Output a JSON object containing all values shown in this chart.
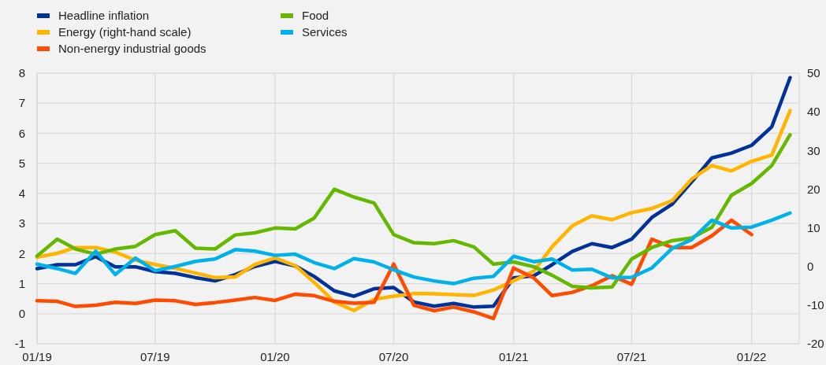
{
  "chart_data": {
    "type": "line",
    "x": [
      "2019-01",
      "2019-02",
      "2019-03",
      "2019-04",
      "2019-05",
      "2019-06",
      "2019-07",
      "2019-08",
      "2019-09",
      "2019-10",
      "2019-11",
      "2019-12",
      "2020-01",
      "2020-02",
      "2020-03",
      "2020-04",
      "2020-05",
      "2020-06",
      "2020-07",
      "2020-08",
      "2020-09",
      "2020-10",
      "2020-11",
      "2020-12",
      "2021-01",
      "2021-02",
      "2021-03",
      "2021-04",
      "2021-05",
      "2021-06",
      "2021-07",
      "2021-08",
      "2021-09",
      "2021-10",
      "2021-11",
      "2021-12",
      "2022-01",
      "2022-02",
      "2022-03"
    ],
    "series": [
      {
        "name": "Headline inflation",
        "color": "#003299",
        "values": [
          1.5,
          1.63,
          1.63,
          1.9,
          1.56,
          1.56,
          1.4,
          1.34,
          1.2,
          1.09,
          1.3,
          1.57,
          1.74,
          1.59,
          1.24,
          0.76,
          0.58,
          0.83,
          0.87,
          0.39,
          0.25,
          0.34,
          0.22,
          0.25,
          1.19,
          1.26,
          1.63,
          2.07,
          2.33,
          2.2,
          2.48,
          3.2,
          3.64,
          4.38,
          5.18,
          5.34,
          5.6,
          6.22,
          7.85
        ]
      },
      {
        "name": "Energy (right-hand scale)",
        "color": "#ffb400",
        "axis": "y2",
        "values": [
          2.4,
          3.4,
          4.9,
          4.9,
          3.7,
          1.6,
          0.5,
          -0.5,
          -1.7,
          -2.9,
          -2.7,
          0.5,
          2.2,
          0.2,
          -4.1,
          -9.2,
          -11.4,
          -8.5,
          -7.7,
          -7.0,
          -7.1,
          -7.3,
          -7.5,
          -6.1,
          -3.7,
          -1.2,
          5.1,
          10.5,
          13.1,
          12.1,
          13.9,
          15.0,
          17.0,
          22.6,
          26.1,
          24.7,
          27.2,
          28.8,
          40.3
        ]
      },
      {
        "name": "Non-energy industrial goods",
        "color": "#ff4b00",
        "values": [
          0.43,
          0.41,
          0.24,
          0.28,
          0.38,
          0.34,
          0.45,
          0.43,
          0.31,
          0.37,
          0.45,
          0.54,
          0.44,
          0.65,
          0.6,
          0.41,
          0.35,
          0.38,
          1.65,
          0.28,
          0.1,
          0.22,
          0.06,
          -0.16,
          1.52,
          1.19,
          0.6,
          0.71,
          0.93,
          1.26,
          0.98,
          2.48,
          2.2,
          2.2,
          2.59,
          3.11,
          2.63,
          null,
          null
        ]
      },
      {
        "name": "Food",
        "color": "#65b800",
        "values": [
          1.92,
          2.48,
          2.15,
          1.98,
          2.15,
          2.24,
          2.63,
          2.76,
          2.18,
          2.15,
          2.62,
          2.69,
          2.85,
          2.82,
          3.18,
          4.14,
          3.88,
          3.68,
          2.63,
          2.36,
          2.33,
          2.43,
          2.22,
          1.65,
          1.72,
          1.56,
          1.28,
          0.91,
          0.86,
          0.89,
          1.82,
          2.2,
          2.43,
          2.52,
          2.87,
          3.94,
          4.33,
          4.93,
          5.95
        ]
      },
      {
        "name": "Services",
        "color": "#00b1ea",
        "values": [
          1.65,
          1.5,
          1.34,
          2.08,
          1.3,
          1.85,
          1.43,
          1.57,
          1.74,
          1.82,
          2.13,
          2.08,
          1.94,
          1.98,
          1.7,
          1.5,
          1.83,
          1.72,
          1.46,
          1.22,
          1.09,
          1.0,
          1.18,
          1.24,
          1.91,
          1.73,
          1.82,
          1.45,
          1.48,
          1.19,
          1.21,
          1.52,
          2.17,
          2.46,
          3.11,
          2.85,
          2.88,
          3.11,
          3.35
        ]
      }
    ],
    "xlim": [
      "2019-01",
      "2022-03-15"
    ],
    "xticks": [
      {
        "value": "2019-01",
        "label": "01/19"
      },
      {
        "value": "2019-07",
        "label": "07/19"
      },
      {
        "value": "2020-01",
        "label": "01/20"
      },
      {
        "value": "2020-07",
        "label": "07/20"
      },
      {
        "value": "2021-01",
        "label": "01/21"
      },
      {
        "value": "2021-07",
        "label": "07/21"
      },
      {
        "value": "2022-01",
        "label": "01/22"
      }
    ],
    "ylim": [
      -1,
      8
    ],
    "yticks": [
      -1,
      0,
      1,
      2,
      3,
      4,
      5,
      6,
      7,
      8
    ],
    "y2lim": [
      -20,
      50
    ],
    "y2ticks": [
      -20,
      -10,
      0,
      10,
      20,
      30,
      40,
      50
    ],
    "grid": true,
    "legend": "top left",
    "marker": "none",
    "line_style": "solid"
  }
}
